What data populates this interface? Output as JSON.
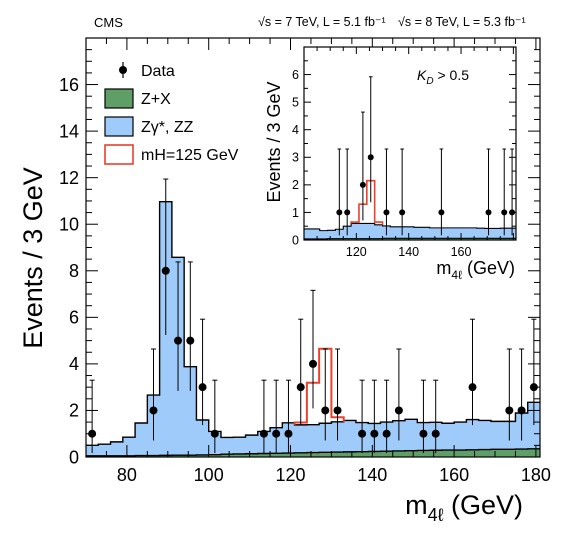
{
  "header": {
    "experiment": "CMS",
    "lumi_7tev": "√s = 7 TeV, L = 5.1 fb⁻¹",
    "lumi_8tev": "√s = 8 TeV, L = 5.3 fb⁻¹"
  },
  "colors": {
    "zx_fill": "#5f9f67",
    "zz_fill": "#9ecbfa",
    "signal_line": "#e8412c",
    "data_marker": "#000000"
  },
  "chart_data": [
    {
      "type": "bar",
      "name": "main",
      "xlabel": "m4ℓ (GeV)",
      "ylabel": "Events / 3 GeV",
      "xlim": [
        70,
        181
      ],
      "ylim": [
        0,
        18
      ],
      "xticks": [
        80,
        100,
        120,
        140,
        160,
        180
      ],
      "yticks": [
        0,
        2,
        4,
        6,
        8,
        10,
        12,
        14,
        16
      ],
      "bin_width": 3,
      "bin_edges": [
        70,
        73,
        76,
        79,
        82,
        85,
        88,
        91,
        94,
        97,
        100,
        103,
        106,
        109,
        112,
        115,
        118,
        121,
        124,
        127,
        130,
        133,
        136,
        139,
        142,
        145,
        148,
        151,
        154,
        157,
        160,
        163,
        166,
        169,
        172,
        175,
        178,
        181
      ],
      "series": [
        {
          "name": "Z+X",
          "role": "stacked-fill",
          "values": [
            0.05,
            0.05,
            0.05,
            0.05,
            0.06,
            0.06,
            0.07,
            0.08,
            0.08,
            0.09,
            0.1,
            0.12,
            0.13,
            0.14,
            0.15,
            0.16,
            0.17,
            0.18,
            0.19,
            0.2,
            0.21,
            0.22,
            0.23,
            0.24,
            0.25,
            0.26,
            0.27,
            0.28,
            0.29,
            0.3,
            0.3,
            0.31,
            0.32,
            0.33,
            0.33,
            0.34,
            0.35
          ]
        },
        {
          "name": "Zγ*, ZZ",
          "role": "stacked-fill",
          "values": [
            0.45,
            0.5,
            0.6,
            0.8,
            1.4,
            2.6,
            10.9,
            8.5,
            3.8,
            1.5,
            1.0,
            0.72,
            0.72,
            0.8,
            0.95,
            1.1,
            1.3,
            1.2,
            1.2,
            1.25,
            1.3,
            1.35,
            1.25,
            1.2,
            1.25,
            1.3,
            1.35,
            1.2,
            1.2,
            1.15,
            1.2,
            1.3,
            1.25,
            1.2,
            1.2,
            1.55,
            2.0
          ]
        },
        {
          "name": "mH=125 GeV",
          "role": "stacked-line",
          "values": [
            0,
            0,
            0,
            0,
            0,
            0,
            0,
            0,
            0,
            0,
            0,
            0,
            0,
            0,
            0,
            0,
            0,
            0.1,
            1.8,
            3.2,
            0.2,
            0,
            0,
            0,
            0,
            0,
            0,
            0,
            0,
            0,
            0,
            0,
            0,
            0,
            0,
            0,
            0
          ]
        }
      ],
      "data_points": [
        {
          "x": 71.5,
          "y": 1,
          "err_lo": 0.83,
          "err_hi": 2.3
        },
        {
          "x": 86.5,
          "y": 2,
          "err_lo": 1.29,
          "err_hi": 2.64
        },
        {
          "x": 89.5,
          "y": 8,
          "err_lo": 2.76,
          "err_hi": 3.94
        },
        {
          "x": 92.5,
          "y": 5,
          "err_lo": 2.16,
          "err_hi": 3.38
        },
        {
          "x": 95.5,
          "y": 5,
          "err_lo": 2.16,
          "err_hi": 3.38
        },
        {
          "x": 98.5,
          "y": 3,
          "err_lo": 1.63,
          "err_hi": 2.92
        },
        {
          "x": 101.5,
          "y": 1,
          "err_lo": 0.83,
          "err_hi": 2.3
        },
        {
          "x": 113.5,
          "y": 1,
          "err_lo": 0.83,
          "err_hi": 2.3
        },
        {
          "x": 116.5,
          "y": 1,
          "err_lo": 0.83,
          "err_hi": 2.3
        },
        {
          "x": 119.5,
          "y": 1,
          "err_lo": 0.83,
          "err_hi": 2.3
        },
        {
          "x": 122.5,
          "y": 3,
          "err_lo": 1.63,
          "err_hi": 2.92
        },
        {
          "x": 125.5,
          "y": 4,
          "err_lo": 1.91,
          "err_hi": 3.16
        },
        {
          "x": 128.5,
          "y": 2,
          "err_lo": 1.29,
          "err_hi": 2.64
        },
        {
          "x": 131.5,
          "y": 2,
          "err_lo": 1.29,
          "err_hi": 2.64
        },
        {
          "x": 137.5,
          "y": 1,
          "err_lo": 0.83,
          "err_hi": 2.3
        },
        {
          "x": 140.5,
          "y": 1,
          "err_lo": 0.83,
          "err_hi": 2.3
        },
        {
          "x": 143.5,
          "y": 1,
          "err_lo": 0.83,
          "err_hi": 2.3
        },
        {
          "x": 146.5,
          "y": 2,
          "err_lo": 1.29,
          "err_hi": 2.64
        },
        {
          "x": 152.5,
          "y": 1,
          "err_lo": 0.83,
          "err_hi": 2.3
        },
        {
          "x": 155.5,
          "y": 1,
          "err_lo": 0.83,
          "err_hi": 2.3
        },
        {
          "x": 164.5,
          "y": 3,
          "err_lo": 1.63,
          "err_hi": 2.92
        },
        {
          "x": 173.5,
          "y": 2,
          "err_lo": 1.29,
          "err_hi": 2.64
        },
        {
          "x": 176.5,
          "y": 2,
          "err_lo": 1.29,
          "err_hi": 2.64
        },
        {
          "x": 179.5,
          "y": 3,
          "err_lo": 1.63,
          "err_hi": 2.92
        }
      ],
      "legend": {
        "position": "top-left",
        "entries": [
          {
            "label": "Data",
            "kind": "marker"
          },
          {
            "label": "Z+X",
            "kind": "fill",
            "series": "Z+X"
          },
          {
            "label": "Zγ*, ZZ",
            "kind": "fill",
            "series": "Zγ*, ZZ"
          },
          {
            "label": "mH=125 GeV",
            "kind": "line",
            "series": "mH=125 GeV"
          }
        ]
      }
    },
    {
      "type": "bar",
      "name": "inset",
      "annotation": "KD > 0.5",
      "xlabel": "m4ℓ (GeV)",
      "ylabel": "Events / 3 GeV",
      "xlim": [
        100,
        181
      ],
      "ylim": [
        0,
        7
      ],
      "xticks": [
        120,
        140,
        160
      ],
      "yticks": [
        0,
        1,
        2,
        3,
        4,
        5,
        6
      ],
      "bin_width": 3,
      "bin_edges": [
        100,
        103,
        106,
        109,
        112,
        115,
        118,
        121,
        124,
        127,
        130,
        133,
        136,
        139,
        142,
        145,
        148,
        151,
        154,
        157,
        160,
        163,
        166,
        169,
        172,
        175,
        178,
        181
      ],
      "series": [
        {
          "name": "Z+X",
          "role": "stacked-fill",
          "values": [
            0.04,
            0.04,
            0.04,
            0.05,
            0.05,
            0.05,
            0.05,
            0.05,
            0.05,
            0.05,
            0.06,
            0.06,
            0.06,
            0.06,
            0.06,
            0.06,
            0.06,
            0.06,
            0.06,
            0.06,
            0.06,
            0.06,
            0.06,
            0.06,
            0.06,
            0.06,
            0.06
          ]
        },
        {
          "name": "Zγ*, ZZ",
          "role": "stacked-fill",
          "values": [
            0.36,
            0.36,
            0.3,
            0.3,
            0.34,
            0.45,
            0.55,
            0.55,
            0.55,
            0.5,
            0.45,
            0.42,
            0.42,
            0.42,
            0.4,
            0.4,
            0.38,
            0.38,
            0.38,
            0.38,
            0.38,
            0.38,
            0.37,
            0.36,
            0.36,
            0.37,
            0.37
          ]
        },
        {
          "name": "mH=125 GeV",
          "role": "stacked-line",
          "values": [
            0,
            0,
            0,
            0,
            0,
            0,
            0.05,
            0.7,
            1.55,
            0.1,
            0,
            0,
            0,
            0,
            0,
            0,
            0,
            0,
            0,
            0,
            0,
            0,
            0,
            0,
            0,
            0,
            0
          ]
        }
      ],
      "data_points": [
        {
          "x": 113.5,
          "y": 1,
          "err_lo": 0.83,
          "err_hi": 2.3
        },
        {
          "x": 116.5,
          "y": 1,
          "err_lo": 0.83,
          "err_hi": 2.3
        },
        {
          "x": 122.5,
          "y": 2,
          "err_lo": 1.29,
          "err_hi": 2.64
        },
        {
          "x": 125.5,
          "y": 3,
          "err_lo": 1.63,
          "err_hi": 2.92
        },
        {
          "x": 131.5,
          "y": 1,
          "err_lo": 0.83,
          "err_hi": 2.3
        },
        {
          "x": 137.5,
          "y": 1,
          "err_lo": 0.83,
          "err_hi": 2.3
        },
        {
          "x": 152.5,
          "y": 1,
          "err_lo": 0.83,
          "err_hi": 2.3
        },
        {
          "x": 170.5,
          "y": 1,
          "err_lo": 0.83,
          "err_hi": 2.3
        },
        {
          "x": 176.5,
          "y": 1,
          "err_lo": 0.83,
          "err_hi": 2.3
        },
        {
          "x": 179.5,
          "y": 1,
          "err_lo": 0.83,
          "err_hi": 2.3
        }
      ]
    }
  ]
}
